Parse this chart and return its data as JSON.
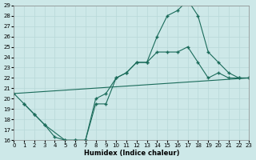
{
  "xlabel": "Humidex (Indice chaleur)",
  "background_color": "#cde8e8",
  "grid_color": "#b8d8d8",
  "line_color": "#1a6b5a",
  "ylim": [
    16,
    29
  ],
  "xlim": [
    0,
    23
  ],
  "yticks": [
    16,
    17,
    18,
    19,
    20,
    21,
    22,
    23,
    24,
    25,
    26,
    27,
    28,
    29
  ],
  "xticks": [
    0,
    1,
    2,
    3,
    4,
    5,
    6,
    7,
    8,
    9,
    10,
    11,
    12,
    13,
    14,
    15,
    16,
    17,
    18,
    19,
    20,
    21,
    22,
    23
  ],
  "curve1_x": [
    0,
    1,
    2,
    3,
    4,
    5,
    6,
    7,
    8,
    9,
    10,
    11,
    12,
    13,
    14,
    15,
    16,
    17,
    18,
    19,
    20,
    21,
    22,
    23
  ],
  "curve1_y": [
    20.5,
    19.5,
    18.5,
    17.5,
    16.3,
    16.0,
    16.0,
    16.0,
    19.5,
    19.5,
    22.0,
    22.5,
    23.5,
    23.5,
    26.0,
    28.0,
    28.5,
    29.5,
    28.0,
    24.5,
    23.5,
    22.5,
    22.0,
    22.0
  ],
  "curve2_x": [
    1,
    2,
    3,
    5,
    6,
    7,
    8,
    9,
    10,
    11,
    12,
    13,
    14,
    15,
    16,
    17,
    18,
    19,
    20,
    21,
    22,
    23
  ],
  "curve2_y": [
    19.5,
    18.5,
    17.5,
    16.0,
    16.0,
    16.0,
    20.0,
    20.5,
    22.0,
    22.5,
    23.5,
    23.5,
    24.5,
    24.5,
    24.5,
    25.0,
    23.5,
    22.0,
    22.5,
    22.0,
    22.0,
    22.0
  ],
  "curve3_x": [
    0,
    23
  ],
  "curve3_y": [
    20.5,
    22.0
  ]
}
